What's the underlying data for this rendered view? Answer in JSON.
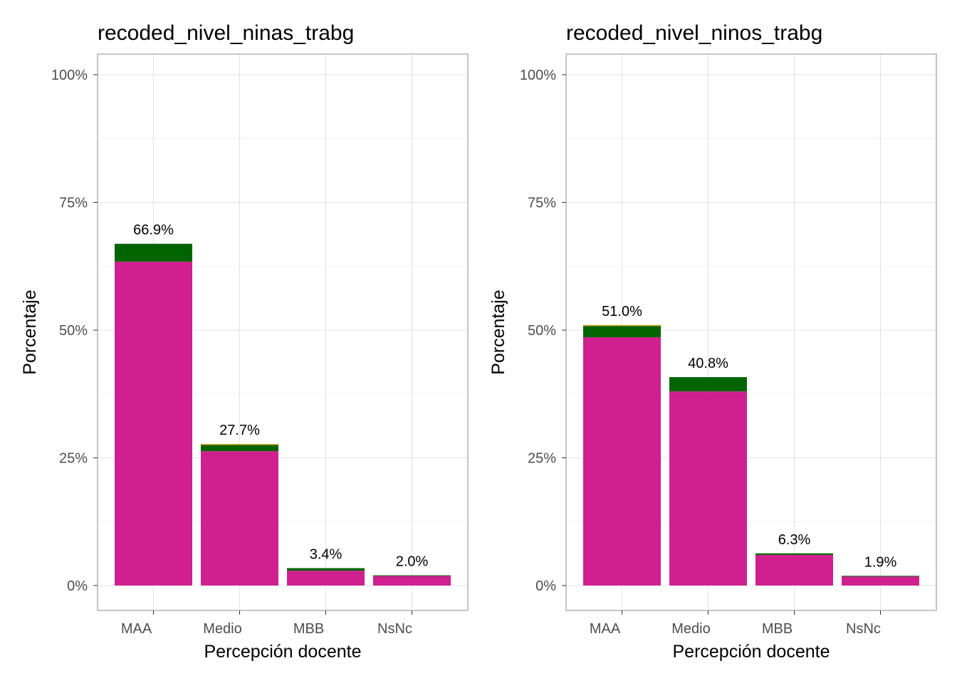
{
  "chart_data": [
    {
      "type": "bar",
      "stacked": true,
      "title": "recoded_nivel_ninas_trabg",
      "xlabel": "Percepción docente",
      "ylabel": "Porcentaje",
      "ylim": [
        0,
        100
      ],
      "yticks": [
        "0%",
        "25%",
        "50%",
        "75%",
        "100%"
      ],
      "categories": [
        "MAA",
        "Medio",
        "MBB",
        "NsNc"
      ],
      "total_labels": [
        "66.9%",
        "27.7%",
        "3.4%",
        "2.0%"
      ],
      "series": [
        {
          "color": "#d0208f",
          "values": [
            63.4,
            26.3,
            2.9,
            1.9
          ]
        },
        {
          "color": "#006400",
          "values": [
            3.5,
            1.2,
            0.5,
            0.1
          ]
        },
        {
          "color": "#c8a000",
          "values": [
            0.0,
            0.2,
            0.0,
            0.0
          ]
        }
      ],
      "totals": [
        66.9,
        27.7,
        3.4,
        2.0
      ],
      "grid": true,
      "legend": "none"
    },
    {
      "type": "bar",
      "stacked": true,
      "title": "recoded_nivel_ninos_trabg",
      "xlabel": "Percepción docente",
      "ylabel": "Porcentaje",
      "ylim": [
        0,
        100
      ],
      "yticks": [
        "0%",
        "25%",
        "50%",
        "75%",
        "100%"
      ],
      "categories": [
        "MAA",
        "Medio",
        "MBB",
        "NsNc"
      ],
      "total_labels": [
        "51.0%",
        "40.8%",
        "6.3%",
        "1.9%"
      ],
      "series": [
        {
          "color": "#d0208f",
          "values": [
            48.6,
            38.0,
            6.0,
            1.8
          ]
        },
        {
          "color": "#006400",
          "values": [
            2.2,
            2.8,
            0.3,
            0.1
          ]
        },
        {
          "color": "#c8a000",
          "values": [
            0.2,
            0.0,
            0.0,
            0.0
          ]
        }
      ],
      "totals": [
        51.0,
        40.8,
        6.3,
        1.9
      ],
      "grid": true,
      "legend": "none"
    }
  ]
}
